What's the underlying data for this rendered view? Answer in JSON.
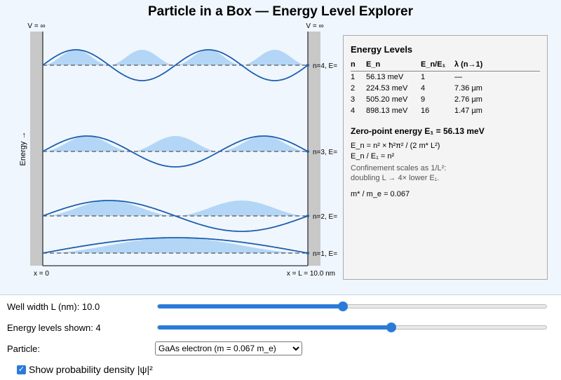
{
  "title": "Particle in a Box — Energy Level Explorer",
  "plot": {
    "left_wall_label": "V = ∞",
    "right_wall_label": "V = ∞",
    "energy_axis_label": "Energy →",
    "x_start_label": "x = 0",
    "x_end_label": "x = L = 10.0 nm",
    "level_labels": [
      "n=1,  E=",
      "n=2,  E=",
      "n=3,  E=",
      "n=4,  E="
    ],
    "wave_color": "#1c5fb0",
    "density_color": "#a8d0f5"
  },
  "panel": {
    "heading": "Energy Levels",
    "columns": [
      "n",
      "E_n",
      "E_n/E₁",
      "λ (n→1)"
    ],
    "rows": [
      {
        "n": "1",
        "e": "56.13 meV",
        "ratio": "1",
        "lambda": "—"
      },
      {
        "n": "2",
        "e": "224.53 meV",
        "ratio": "4",
        "lambda": "7.36 µm"
      },
      {
        "n": "3",
        "e": "505.20 meV",
        "ratio": "9",
        "lambda": "2.76 µm"
      },
      {
        "n": "4",
        "e": "898.13 meV",
        "ratio": "16",
        "lambda": "1.47 µm"
      }
    ],
    "zero_point": "Zero-point energy E₁ = 56.13 meV",
    "formula1": "E_n = n² × ħ²π² / (2 m* L²)",
    "formula2": "E_n / E₁ = n²",
    "note1": "Confinement scales as 1/L²:",
    "note2": "doubling L → 4× lower E₁.",
    "mass_ratio": "m* / m_e = 0.067"
  },
  "controls": {
    "width_label": "Well width L (nm): 10.0",
    "width_fraction": 0.474,
    "levels_label": "Energy levels shown: 4",
    "levels_fraction": 0.599,
    "particle_label": "Particle:",
    "particle_selected": "GaAs electron (m = 0.067 m_e)",
    "density_label": "Show probability density |ψ|²",
    "density_checked": true
  }
}
